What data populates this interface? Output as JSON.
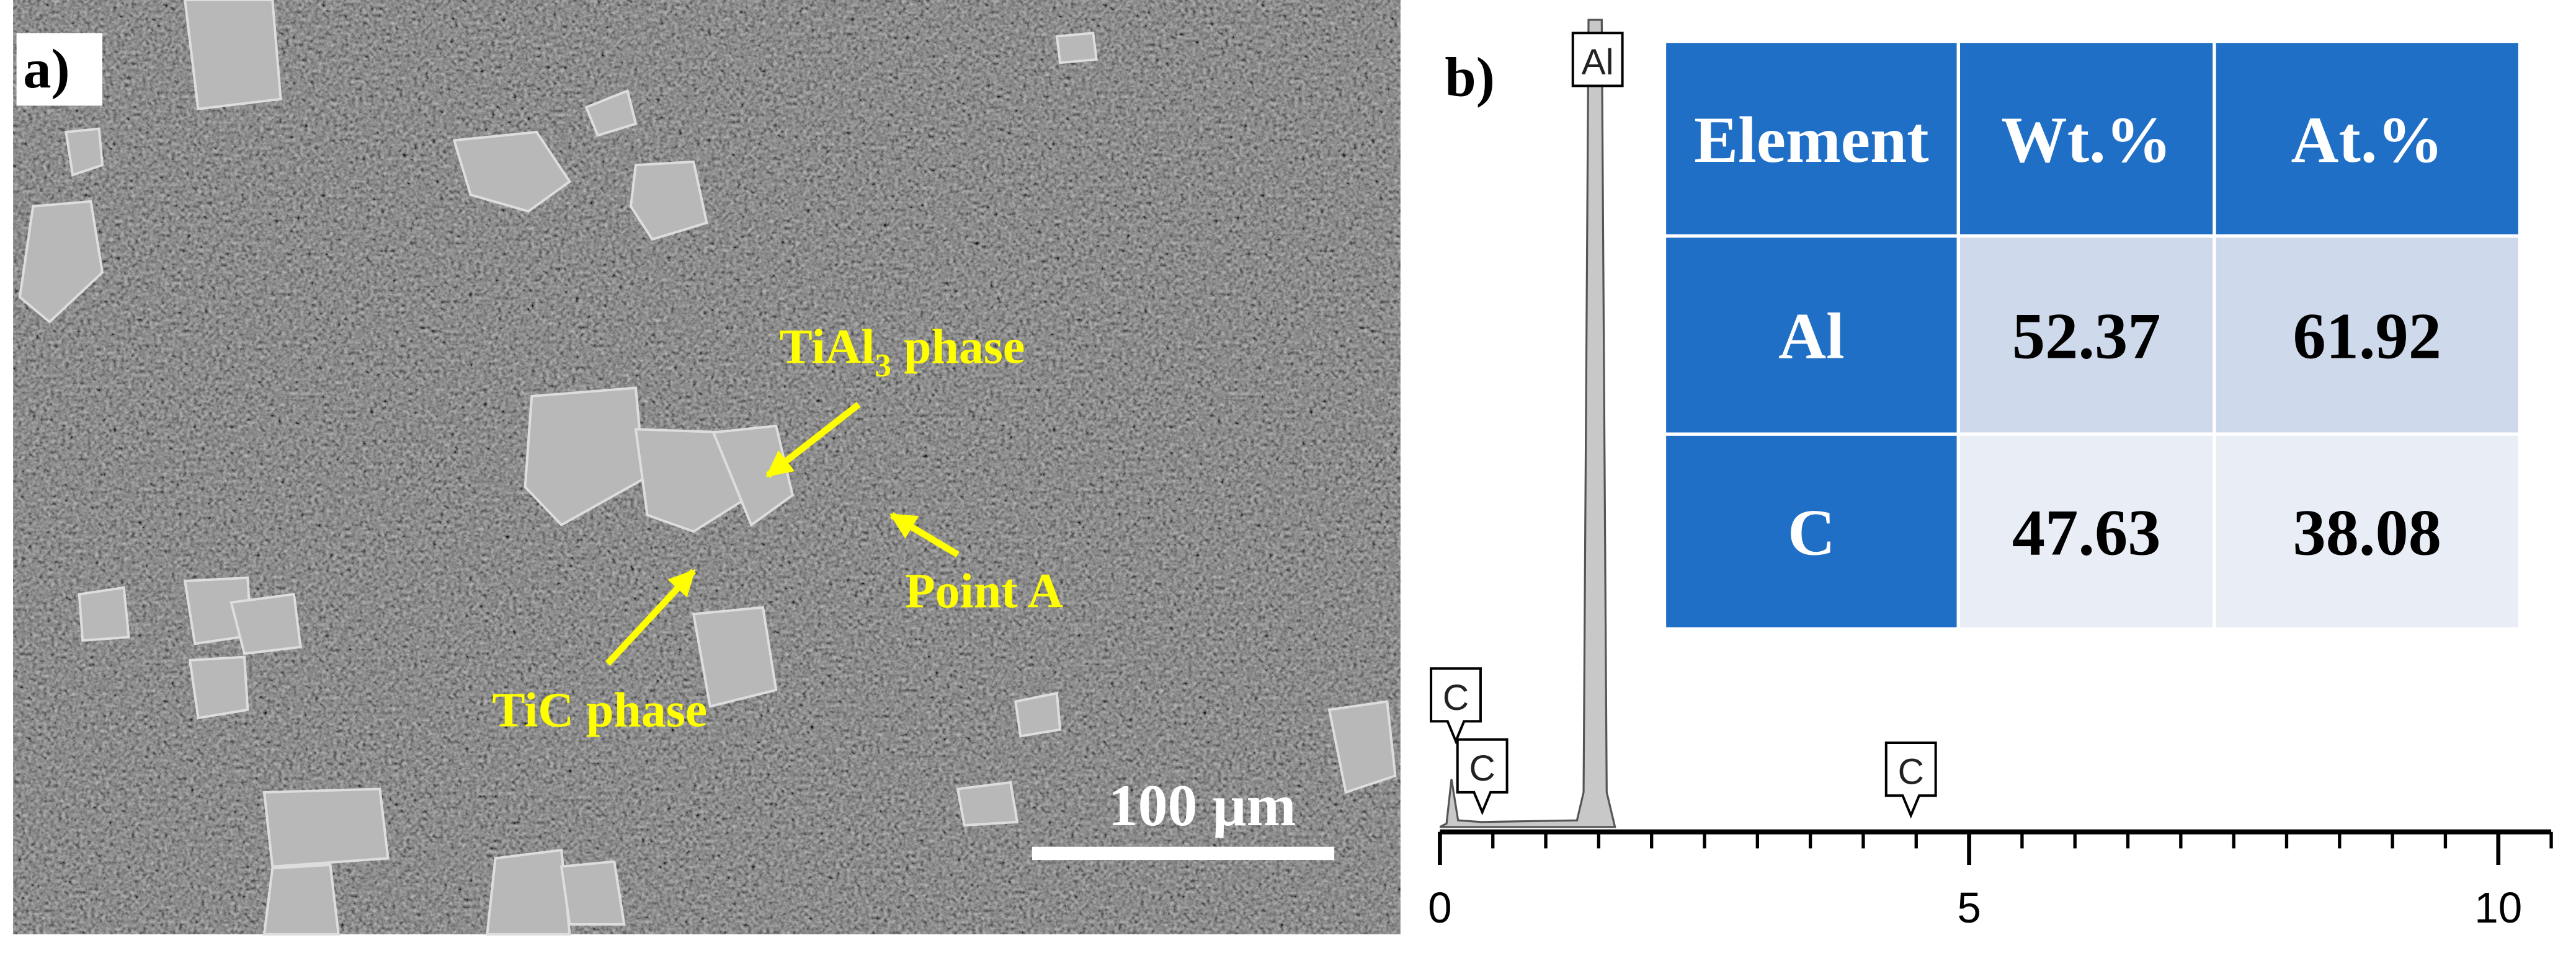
{
  "panel_a": {
    "label": "a)",
    "annotations": [
      {
        "text": "TiAl",
        "subscript": "3",
        "suffix": " phase"
      },
      {
        "text": "Point A"
      },
      {
        "text": "TiC phase"
      }
    ],
    "scale_bar": "100 µm"
  },
  "panel_b_label": "b)",
  "chart_data": {
    "type": "spectrum",
    "xlim": [
      0,
      10.5
    ],
    "xticks": [
      0,
      5,
      10
    ],
    "peaks": [
      {
        "label": "Al",
        "x": 1.49
      },
      {
        "label": "C",
        "x": 0.15
      },
      {
        "label": "C",
        "x": 0.4
      },
      {
        "label": "C",
        "x": 4.45
      }
    ]
  },
  "table": {
    "header": [
      "Element",
      "Wt.%",
      "At.%"
    ],
    "rows": [
      [
        "Al",
        52.37,
        61.92
      ],
      [
        "C",
        47.63,
        38.08
      ]
    ]
  }
}
